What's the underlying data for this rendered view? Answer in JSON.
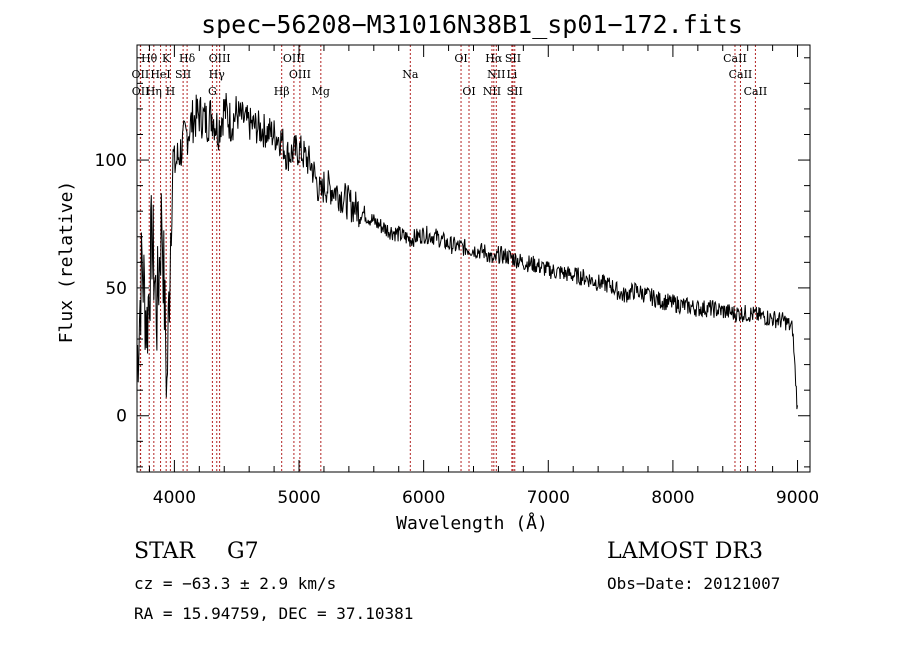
{
  "chart_data": {
    "type": "line",
    "title": "spec−56208−M31016N38B1_sp01−172.fits",
    "xlabel": "Wavelength (Å)",
    "ylabel": "Flux (relative)",
    "xlim": [
      3700,
      9100
    ],
    "ylim": [
      -22,
      145
    ],
    "xticks": [
      4000,
      5000,
      6000,
      7000,
      8000,
      9000
    ],
    "yticks": [
      0,
      50,
      100
    ],
    "series": [
      {
        "name": "flux",
        "x": [
          3700,
          3740,
          3780,
          3820,
          3860,
          3900,
          3940,
          3980,
          4020,
          4060,
          4100,
          4140,
          4200,
          4260,
          4300,
          4350,
          4400,
          4450,
          4500,
          4600,
          4700,
          4800,
          4861,
          4900,
          5000,
          5100,
          5175,
          5200,
          5300,
          5400,
          5500,
          5600,
          5700,
          5800,
          5893,
          6000,
          6100,
          6200,
          6300,
          6400,
          6500,
          6563,
          6600,
          6700,
          6800,
          6900,
          7000,
          7100,
          7200,
          7300,
          7400,
          7500,
          7600,
          7700,
          7800,
          7900,
          8000,
          8100,
          8200,
          8300,
          8400,
          8500,
          8600,
          8700,
          8800,
          8900,
          8960,
          9000
        ],
        "y": [
          20,
          60,
          35,
          70,
          40,
          80,
          10,
          95,
          100,
          105,
          110,
          115,
          118,
          115,
          118,
          112,
          120,
          115,
          118,
          114,
          112,
          110,
          108,
          102,
          104,
          98,
          86,
          90,
          88,
          83,
          80,
          76,
          73,
          71,
          69,
          71,
          70,
          67,
          66,
          65,
          64,
          60,
          63,
          62,
          60,
          59,
          57,
          56,
          55,
          54,
          52,
          51,
          47,
          49,
          47,
          45,
          44,
          43,
          42,
          42,
          41,
          40,
          40,
          39,
          38,
          37,
          34,
          2
        ]
      }
    ],
    "lines": [
      {
        "label": "Hθ",
        "wave": 3798,
        "row": 0
      },
      {
        "label": "K",
        "wave": 3934,
        "row": 0
      },
      {
        "label": "Hδ",
        "wave": 4102,
        "row": 0
      },
      {
        "label": "OIII",
        "wave": 4363,
        "row": 0
      },
      {
        "label": "OIII",
        "wave": 4959,
        "row": 0
      },
      {
        "label": "OI",
        "wave": 6300,
        "row": 0
      },
      {
        "label": "Hα",
        "wave": 6563,
        "row": 0
      },
      {
        "label": "SII",
        "wave": 6717,
        "row": 0
      },
      {
        "label": "CaII",
        "wave": 8498,
        "row": 0
      },
      {
        "label": "OII",
        "wave": 3727,
        "row": 1
      },
      {
        "label": "HeI",
        "wave": 3889,
        "row": 1
      },
      {
        "label": "SII",
        "wave": 4070,
        "row": 1
      },
      {
        "label": "Hγ",
        "wave": 4340,
        "row": 1
      },
      {
        "label": "OIII",
        "wave": 5007,
        "row": 1
      },
      {
        "label": "Na",
        "wave": 5893,
        "row": 1
      },
      {
        "label": "NII",
        "wave": 6583,
        "row": 1
      },
      {
        "label": "Li",
        "wave": 6708,
        "row": 1
      },
      {
        "label": "CaII",
        "wave": 8542,
        "row": 1
      },
      {
        "label": "OII",
        "wave": 3729,
        "row": 2
      },
      {
        "label": "Hη",
        "wave": 3835,
        "row": 2
      },
      {
        "label": "H",
        "wave": 3968,
        "row": 2
      },
      {
        "label": "G",
        "wave": 4305,
        "row": 2
      },
      {
        "label": "Hβ",
        "wave": 4861,
        "row": 2
      },
      {
        "label": "Mg",
        "wave": 5175,
        "row": 2
      },
      {
        "label": "OI",
        "wave": 6364,
        "row": 2
      },
      {
        "label": "NII",
        "wave": 6548,
        "row": 2
      },
      {
        "label": "SII",
        "wave": 6731,
        "row": 2
      },
      {
        "label": "CaII",
        "wave": 8662,
        "row": 2
      }
    ]
  },
  "info": {
    "class": "STAR",
    "subclass": "G7",
    "survey": "LAMOST DR3",
    "cz": "cz = −63.3 ± 2.9 km/s",
    "obs_date": "Obs−Date: 20121007",
    "coords": "RA =  15.94759, DEC =  37.10381"
  },
  "colors": {
    "line_marker": "#b22222",
    "spectrum": "#000000",
    "axes": "#000000"
  }
}
